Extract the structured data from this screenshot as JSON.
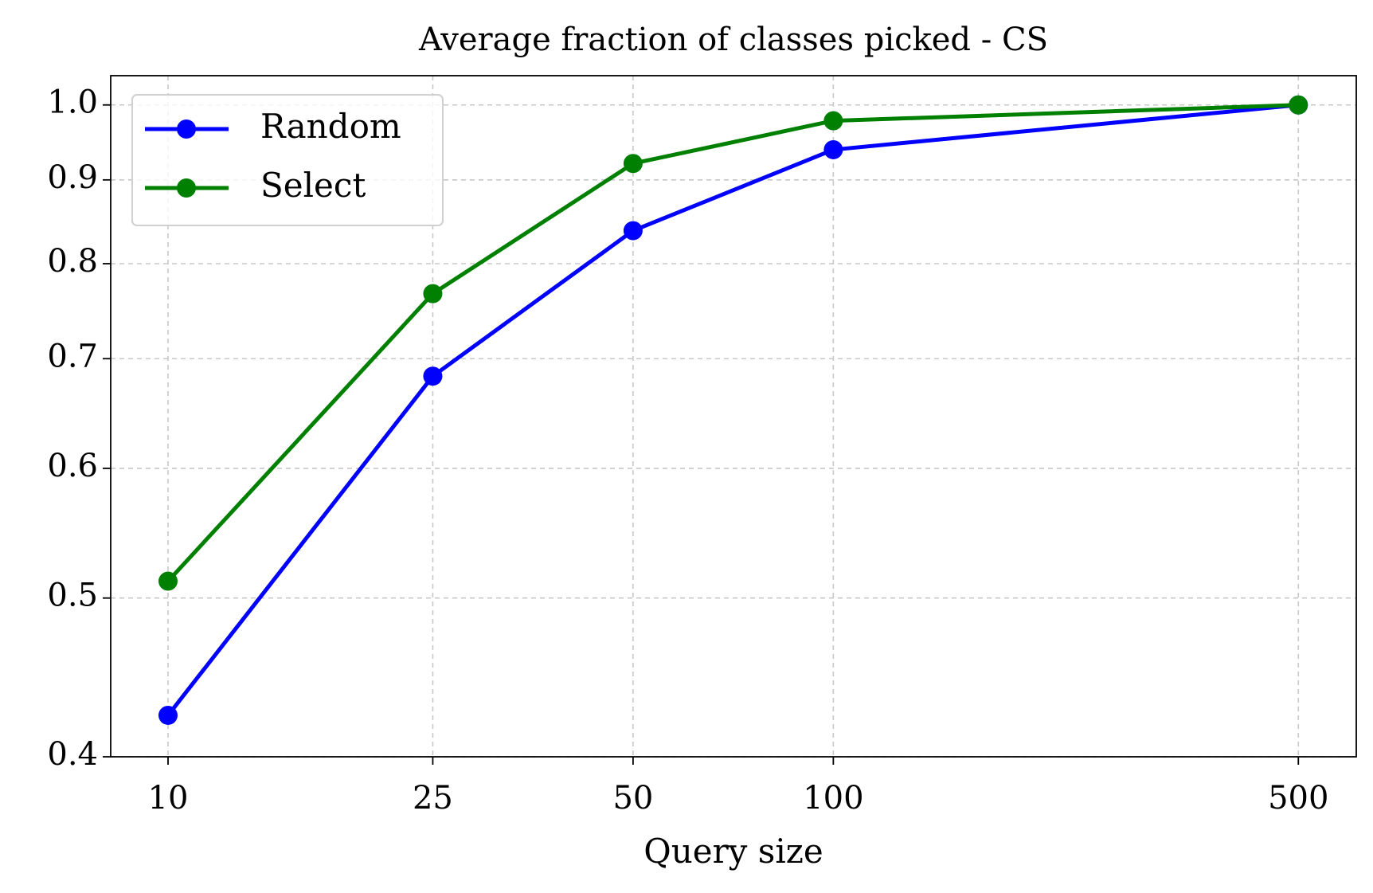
{
  "chart_data": {
    "type": "line",
    "title": "Average fraction of classes picked - CS",
    "x_label": "Query size",
    "x": [
      10,
      25,
      50,
      100,
      500
    ],
    "series": [
      {
        "name": "Random",
        "color": "#0000ff",
        "values": [
          0.424,
          0.683,
          0.838,
          0.939,
          1.0
        ]
      },
      {
        "name": "Select",
        "color": "#008000",
        "values": [
          0.512,
          0.767,
          0.921,
          0.978,
          1.0
        ]
      }
    ],
    "xlim": [
      8.2,
      611
    ],
    "ylim": [
      0.4,
      1.042
    ],
    "xticks": [
      10,
      25,
      50,
      100,
      500
    ],
    "yticks": [
      0.4,
      0.5,
      0.6,
      0.7,
      0.8,
      0.9,
      {
        "value": 1.0,
        "label": "1.0"
      }
    ],
    "xscale": "log",
    "yscale": "log",
    "grid": true,
    "legend": "upper left"
  }
}
